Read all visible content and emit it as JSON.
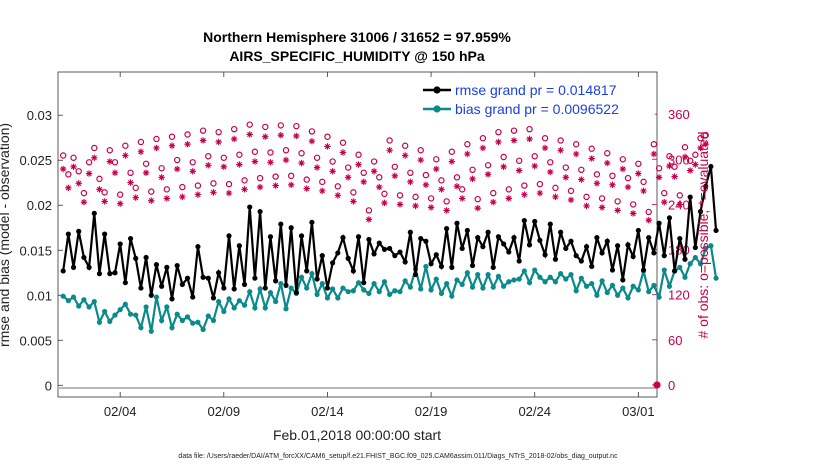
{
  "chart_data": {
    "type": "line",
    "title_line1": "Northern Hemisphere 31006 / 31652 = 97.959%",
    "title_line2": "AIRS_SPECIFIC_HUMIDITY @ 150 hPa",
    "xlabel": "Feb.01,2018 00:00:00 start",
    "ylabel_left": "rmse and bias (model - observation)",
    "ylabel_right": "# of obs: o=possible; *=evaluated",
    "xlim": [
      0,
      28.9
    ],
    "ylim_left": [
      -0.0013,
      0.0348
    ],
    "ylim_right": [
      -16,
      416
    ],
    "x_ticks": [
      3,
      8,
      13,
      18,
      23,
      28
    ],
    "x_tick_labels": [
      "02/04",
      "02/09",
      "02/14",
      "02/19",
      "02/24",
      "03/01"
    ],
    "y_ticks_left": [
      0,
      0.005,
      0.01,
      0.015,
      0.02,
      0.025,
      0.03
    ],
    "y_tick_labels_left": [
      "0",
      "0.005",
      "0.01",
      "0.015",
      "0.02",
      "0.025",
      "0.03"
    ],
    "y_ticks_right": [
      0,
      60,
      120,
      180,
      240,
      300,
      360
    ],
    "y_tick_labels_right": [
      "0",
      "60",
      "120",
      "180",
      "240",
      "300",
      "360"
    ],
    "series": [
      {
        "name": "rmse grand pr = 0.014817",
        "color": "#000000",
        "axis": "left",
        "values": [
          0.0127,
          0.0168,
          0.0131,
          0.0171,
          0.0142,
          0.0131,
          0.0191,
          0.0124,
          0.0168,
          0.0124,
          0.0125,
          0.0157,
          0.0114,
          0.0163,
          0.0141,
          0.0108,
          0.0142,
          0.01,
          0.0134,
          0.011,
          0.0131,
          0.0096,
          0.0133,
          0.0112,
          0.0119,
          0.0098,
          0.0154,
          0.012,
          0.0119,
          0.0097,
          0.0125,
          0.0108,
          0.0166,
          0.0107,
          0.0155,
          0.0112,
          0.0198,
          0.0119,
          0.0193,
          0.0108,
          0.0165,
          0.0116,
          0.0179,
          0.0111,
          0.0175,
          0.0103,
          0.0166,
          0.0127,
          0.0181,
          0.0118,
          0.0144,
          0.0108,
          0.0136,
          0.0147,
          0.0164,
          0.0141,
          0.0127,
          0.0165,
          0.0114,
          0.0162,
          0.0146,
          0.0158,
          0.0151,
          0.0152,
          0.0144,
          0.0148,
          0.0137,
          0.017,
          0.0123,
          0.0163,
          0.016,
          0.0135,
          0.0145,
          0.0132,
          0.0174,
          0.0131,
          0.018,
          0.0152,
          0.0172,
          0.0133,
          0.0164,
          0.0154,
          0.017,
          0.0131,
          0.0165,
          0.0157,
          0.0148,
          0.0164,
          0.0138,
          0.0183,
          0.0156,
          0.0182,
          0.0161,
          0.0145,
          0.0179,
          0.014,
          0.017,
          0.0152,
          0.016,
          0.0144,
          0.0138,
          0.0154,
          0.0132,
          0.0164,
          0.0147,
          0.016,
          0.0128,
          0.0155,
          0.0117,
          0.0156,
          0.0143,
          0.0172,
          0.0128,
          0.0164,
          0.0147,
          0.018,
          0.0144,
          0.0186,
          0.0127,
          0.0163,
          0.014,
          0.0209,
          0.0153,
          0.0193,
          0.0221,
          0.0243,
          0.0172
        ]
      },
      {
        "name": "bias grand pr = 0.0096522",
        "color": "#0a8a8a",
        "axis": "left",
        "values": [
          0.0099,
          0.0094,
          0.0098,
          0.0088,
          0.0095,
          0.0087,
          0.0093,
          0.007,
          0.0082,
          0.0071,
          0.0078,
          0.0084,
          0.009,
          0.0079,
          0.0078,
          0.0064,
          0.0087,
          0.006,
          0.0098,
          0.0072,
          0.0087,
          0.0064,
          0.0079,
          0.0072,
          0.0076,
          0.0069,
          0.007,
          0.0062,
          0.0077,
          0.0072,
          0.0093,
          0.0082,
          0.0096,
          0.0086,
          0.0094,
          0.0089,
          0.0104,
          0.0086,
          0.0107,
          0.0086,
          0.0103,
          0.0093,
          0.0113,
          0.0085,
          0.0108,
          0.0102,
          0.012,
          0.0108,
          0.0124,
          0.0101,
          0.0113,
          0.0097,
          0.0107,
          0.0097,
          0.0108,
          0.0104,
          0.0105,
          0.0114,
          0.0106,
          0.0102,
          0.0113,
          0.0104,
          0.0115,
          0.0101,
          0.0105,
          0.0104,
          0.0116,
          0.0109,
          0.0129,
          0.0107,
          0.0132,
          0.0106,
          0.0118,
          0.0102,
          0.0113,
          0.0099,
          0.0117,
          0.0112,
          0.0125,
          0.0109,
          0.0123,
          0.0108,
          0.0123,
          0.0109,
          0.0121,
          0.011,
          0.0115,
          0.0117,
          0.0118,
          0.0127,
          0.0114,
          0.0128,
          0.012,
          0.0115,
          0.012,
          0.0115,
          0.0124,
          0.0118,
          0.0123,
          0.0105,
          0.0119,
          0.011,
          0.0113,
          0.01,
          0.0116,
          0.0103,
          0.0111,
          0.01,
          0.0108,
          0.0097,
          0.011,
          0.0106,
          0.0127,
          0.0104,
          0.0111,
          0.0098,
          0.0128,
          0.011,
          0.0127,
          0.0131,
          0.012,
          0.0135,
          0.0142,
          0.0135,
          0.0152,
          0.0155,
          0.0119
        ]
      },
      {
        "name": "possible",
        "marker": "o",
        "color": "#c8004a",
        "axis": "right",
        "values": [
          305,
          280,
          302,
          284,
          255,
          296,
          315,
          274,
          256,
          312,
          296,
          253,
          318,
          282,
          262,
          323,
          294,
          257,
          327,
          288,
          260,
          330,
          299,
          263,
          333,
          296,
          265,
          338,
          304,
          268,
          336,
          302,
          267,
          340,
          306,
          272,
          346,
          310,
          275,
          343,
          309,
          277,
          345,
          312,
          278,
          344,
          308,
          273,
          337,
          302,
          270,
          330,
          297,
          264,
          322,
          289,
          256,
          306,
          282,
          232,
          297,
          276,
          254,
          325,
          290,
          252,
          318,
          282,
          250,
          312,
          279,
          248,
          300,
          272,
          244,
          310,
          276,
          260,
          320,
          286,
          247,
          328,
          292,
          255,
          336,
          303,
          260,
          338,
          298,
          265,
          340,
          304,
          267,
          328,
          296,
          262,
          325,
          289,
          258,
          320,
          286,
          250,
          314,
          280,
          248,
          308,
          278,
          244,
          300,
          275,
          240,
          294,
          270,
          230,
          320,
          288,
          255,
          304,
          290,
          252,
          316,
          298,
          306,
          328,
          332
        ]
      },
      {
        "name": "evaluated",
        "marker": "*",
        "color": "#c8004a",
        "axis": "right",
        "values": [
          287,
          262,
          290,
          268,
          243,
          281,
          302,
          260,
          244,
          297,
          282,
          241,
          305,
          269,
          249,
          310,
          282,
          245,
          315,
          276,
          248,
          318,
          287,
          250,
          320,
          284,
          253,
          325,
          292,
          256,
          323,
          290,
          255,
          327,
          293,
          260,
          333,
          297,
          263,
          330,
          296,
          265,
          332,
          299,
          266,
          331,
          295,
          261,
          324,
          289,
          258,
          317,
          284,
          252,
          309,
          276,
          244,
          293,
          270,
          220,
          284,
          263,
          242,
          312,
          278,
          240,
          305,
          270,
          238,
          299,
          266,
          236,
          287,
          260,
          232,
          297,
          264,
          248,
          307,
          274,
          235,
          315,
          280,
          243,
          323,
          290,
          248,
          325,
          285,
          253,
          327,
          291,
          255,
          315,
          283,
          250,
          312,
          276,
          246,
          307,
          273,
          238,
          301,
          268,
          236,
          295,
          266,
          232,
          287,
          263,
          228,
          281,
          258,
          219,
          307,
          276,
          243,
          291,
          277,
          240,
          303,
          285,
          293,
          315,
          320
        ]
      }
    ],
    "legend": [
      "rmse grand pr = 0.014817",
      "bias grand pr = 0.0096522"
    ],
    "legend_position": "top-right",
    "grid": false
  },
  "footer": "data file: /Users/raeder/DAI/ATM_forcXX/CAM6_setup/f.e21.FHIST_BGC.f09_025.CAM6assim.011/Diags_NTrS_2018-02/obs_diag_output.nc",
  "colors": {
    "rmse": "#000000",
    "bias": "#0a8a8a",
    "obs": "#c8004a",
    "zero_line": "#b8b8b8"
  },
  "series_names": [
    "rmse grand pr = 0.014817",
    "bias grand pr = 0.0096522"
  ]
}
